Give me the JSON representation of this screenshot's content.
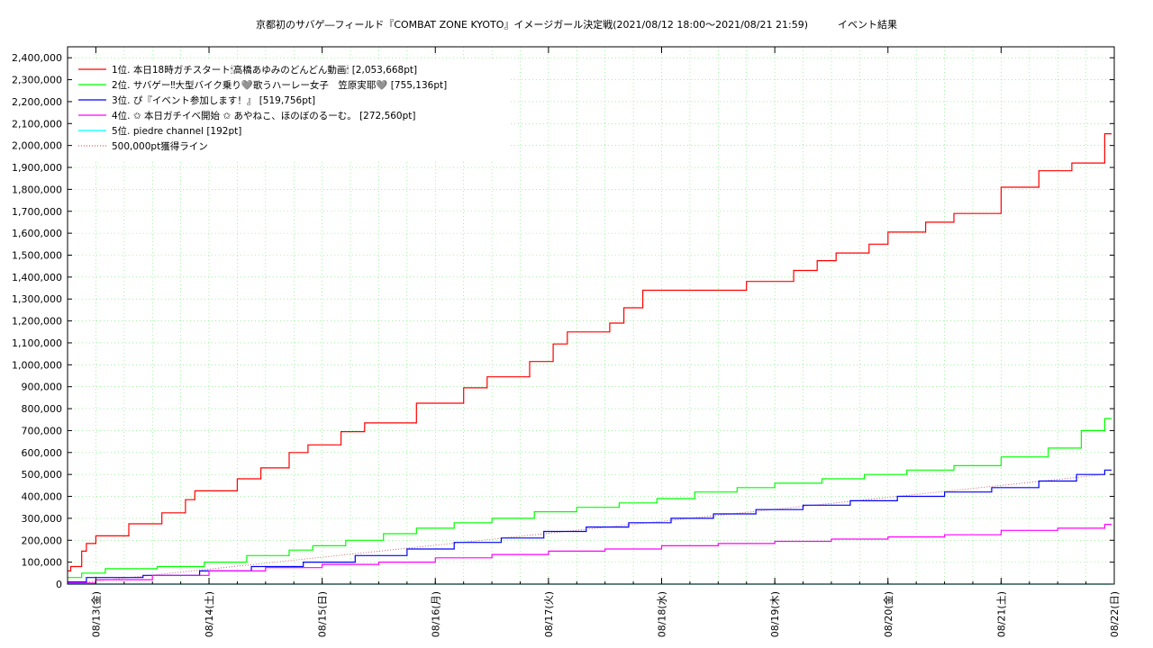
{
  "chart_data": {
    "type": "line",
    "title": "京都初のサバゲ―フィールド『COMBAT ZONE KYOTO』イメージガール決定戦(2021/08/12 18:00〜2021/08/21 21:59)　　　イベント結果",
    "xlabel": "",
    "ylabel": "",
    "ylim": [
      0,
      2450000
    ],
    "yticks": [
      0,
      100000,
      200000,
      300000,
      400000,
      500000,
      600000,
      700000,
      800000,
      900000,
      1000000,
      1100000,
      1200000,
      1300000,
      1400000,
      1500000,
      1600000,
      1700000,
      1800000,
      1900000,
      2000000,
      2100000,
      2200000,
      2300000,
      2400000
    ],
    "ytick_labels": [
      "0",
      "100,000",
      "200,000",
      "300,000",
      "400,000",
      "500,000",
      "600,000",
      "700,000",
      "800,000",
      "900,000",
      "1,000,000",
      "1,100,000",
      "1,200,000",
      "1,300,000",
      "1,400,000",
      "1,500,000",
      "1,600,000",
      "1,700,000",
      "1,800,000",
      "1,900,000",
      "2,000,000",
      "2,100,000",
      "2,200,000",
      "2,300,000",
      "2,400,000"
    ],
    "xlim": [
      "2021-08-12 18:00",
      "2021-08-22 00:00"
    ],
    "xticks": [
      "2021-08-13 00:00",
      "2021-08-14 00:00",
      "2021-08-15 00:00",
      "2021-08-16 00:00",
      "2021-08-17 00:00",
      "2021-08-18 00:00",
      "2021-08-19 00:00",
      "2021-08-20 00:00",
      "2021-08-21 00:00",
      "2021-08-22 00:00"
    ],
    "xtick_labels": [
      "08/13(金)",
      "08/14(土)",
      "08/15(日)",
      "08/16(月)",
      "08/17(火)",
      "08/18(水)",
      "08/19(木)",
      "08/20(金)",
      "08/21(土)",
      "08/22(日)"
    ],
    "grid": true,
    "legend_position": "top-left",
    "series": [
      {
        "name": "1位. 本日18時ガチスタート🕯高橋あゆみのどんどん動画🕯 [2,053,668pt]",
        "color": "#ff0000",
        "x": [
          "2021-08-12 18:00",
          "2021-08-12 18:40",
          "2021-08-12 21:00",
          "2021-08-12 22:00",
          "2021-08-13 00:00",
          "2021-08-13 07:00",
          "2021-08-13 14:00",
          "2021-08-13 19:00",
          "2021-08-13 21:00",
          "2021-08-14 06:00",
          "2021-08-14 11:00",
          "2021-08-14 17:00",
          "2021-08-14 21:00",
          "2021-08-15 04:00",
          "2021-08-15 09:00",
          "2021-08-15 20:00",
          "2021-08-16 06:00",
          "2021-08-16 11:00",
          "2021-08-16 20:00",
          "2021-08-17 01:00",
          "2021-08-17 04:00",
          "2021-08-17 13:00",
          "2021-08-17 16:00",
          "2021-08-17 20:00",
          "2021-08-18 18:00",
          "2021-08-19 04:00",
          "2021-08-19 09:00",
          "2021-08-19 13:00",
          "2021-08-19 20:00",
          "2021-08-20 00:00",
          "2021-08-20 08:00",
          "2021-08-20 14:00",
          "2021-08-21 00:00",
          "2021-08-21 08:00",
          "2021-08-21 15:00",
          "2021-08-21 21:59"
        ],
        "values": [
          60000,
          80000,
          150000,
          185000,
          220000,
          275000,
          325000,
          385000,
          425000,
          480000,
          530000,
          600000,
          635000,
          695000,
          735000,
          825000,
          895000,
          945000,
          1015000,
          1095000,
          1150000,
          1190000,
          1260000,
          1340000,
          1380000,
          1430000,
          1475000,
          1510000,
          1550000,
          1605000,
          1650000,
          1690000,
          1810000,
          1885000,
          1920000,
          2053668
        ]
      },
      {
        "name": "2位. サバゲー‼大型バイク乗り🩶歌うハーレー女子　笠原実耶🩶 [755,136pt]",
        "color": "#00ff00",
        "x": [
          "2021-08-12 18:00",
          "2021-08-12 21:00",
          "2021-08-13 02:00",
          "2021-08-13 13:00",
          "2021-08-13 23:00",
          "2021-08-14 08:00",
          "2021-08-14 17:00",
          "2021-08-14 22:00",
          "2021-08-15 05:00",
          "2021-08-15 13:00",
          "2021-08-15 20:00",
          "2021-08-16 04:00",
          "2021-08-16 12:00",
          "2021-08-16 21:00",
          "2021-08-17 06:00",
          "2021-08-17 15:00",
          "2021-08-17 23:00",
          "2021-08-18 07:00",
          "2021-08-18 16:00",
          "2021-08-19 00:00",
          "2021-08-19 10:00",
          "2021-08-19 19:00",
          "2021-08-20 04:00",
          "2021-08-20 14:00",
          "2021-08-21 00:00",
          "2021-08-21 10:00",
          "2021-08-21 17:00",
          "2021-08-21 21:59"
        ],
        "values": [
          30000,
          50000,
          70000,
          80000,
          100000,
          130000,
          155000,
          175000,
          200000,
          230000,
          255000,
          280000,
          300000,
          330000,
          350000,
          370000,
          390000,
          420000,
          440000,
          460000,
          480000,
          500000,
          520000,
          540000,
          580000,
          620000,
          700000,
          755136
        ]
      },
      {
        "name": "3位. ぴ『イベント参加します！』 [519,756pt]",
        "color": "#0000ff",
        "x": [
          "2021-08-12 18:00",
          "2021-08-12 22:00",
          "2021-08-13 10:00",
          "2021-08-13 22:00",
          "2021-08-14 09:00",
          "2021-08-14 20:00",
          "2021-08-15 07:00",
          "2021-08-15 18:00",
          "2021-08-16 04:00",
          "2021-08-16 14:00",
          "2021-08-16 23:00",
          "2021-08-17 08:00",
          "2021-08-17 17:00",
          "2021-08-18 02:00",
          "2021-08-18 11:00",
          "2021-08-18 20:00",
          "2021-08-19 06:00",
          "2021-08-19 16:00",
          "2021-08-20 02:00",
          "2021-08-20 12:00",
          "2021-08-20 22:00",
          "2021-08-21 08:00",
          "2021-08-21 16:00",
          "2021-08-21 21:59"
        ],
        "values": [
          10000,
          30000,
          40000,
          60000,
          80000,
          100000,
          130000,
          160000,
          190000,
          210000,
          240000,
          260000,
          280000,
          300000,
          320000,
          340000,
          360000,
          380000,
          400000,
          420000,
          440000,
          470000,
          500000,
          519756
        ]
      },
      {
        "name": "4位. ✩ 本日ガチイベ開始 ✩ あやねこ、ほのぼのるーむ。 [272,560pt]",
        "color": "#ff00ff",
        "x": [
          "2021-08-12 18:00",
          "2021-08-13 00:00",
          "2021-08-13 12:00",
          "2021-08-14 00:00",
          "2021-08-14 12:00",
          "2021-08-15 00:00",
          "2021-08-15 12:00",
          "2021-08-16 00:00",
          "2021-08-16 12:00",
          "2021-08-17 00:00",
          "2021-08-17 12:00",
          "2021-08-18 00:00",
          "2021-08-18 12:00",
          "2021-08-19 00:00",
          "2021-08-19 12:00",
          "2021-08-20 00:00",
          "2021-08-20 12:00",
          "2021-08-21 00:00",
          "2021-08-21 12:00",
          "2021-08-21 21:59"
        ],
        "values": [
          5000,
          20000,
          40000,
          60000,
          75000,
          90000,
          100000,
          120000,
          135000,
          150000,
          160000,
          175000,
          185000,
          195000,
          205000,
          215000,
          225000,
          245000,
          255000,
          272560
        ]
      },
      {
        "name": "5位. piedre channel [192pt]",
        "color": "#00ffff",
        "x": [
          "2021-08-12 18:00",
          "2021-08-21 21:59"
        ],
        "values": [
          192,
          192
        ]
      }
    ],
    "reference_line": {
      "name": "500,000pt獲得ライン",
      "color": "#cc6666",
      "x": [
        "2021-08-12 18:00",
        "2021-08-21 21:59"
      ],
      "values": [
        0,
        500000
      ]
    }
  }
}
